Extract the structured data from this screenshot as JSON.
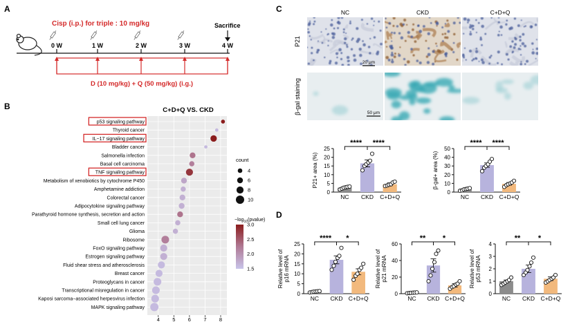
{
  "panel_labels": {
    "a": "A",
    "b": "B",
    "c": "C",
    "d": "D"
  },
  "timeline": {
    "cisp_label": "Cisp (i.p.) for triple : 10 mg/kg",
    "weeks": [
      "0 W",
      "1 W",
      "2 W",
      "3 W",
      "4 W"
    ],
    "sacrifice_label": "Sacrifice",
    "treatment_label": "D (10 mg/kg) + Q (50 mg/kg) (i.g.)"
  },
  "colors": {
    "red": "#d42a2a",
    "nc": "#8c8c8c",
    "ckd": "#b7b3dd",
    "cdq": "#f2b97d",
    "low": "#c8c4ea",
    "high": "#8b1d1d"
  },
  "chart_data": [
    {
      "type": "scatter",
      "title": "C+D+Q VS. CKD",
      "xlabel": "",
      "xlim": [
        3.3,
        8.4
      ],
      "xticks": [
        "4",
        "5",
        "6",
        "7",
        "8"
      ],
      "categories": [
        "p53 signaling pathway",
        "Thyroid cancer",
        "IL−17 signaling pathway",
        "Bladder cancer",
        "Salmonella infection",
        "Basal cell carcinoma",
        "TNF signaling pathway",
        "Metabolism of xenobiotics by cytochrome P450",
        "Amphetamine addiction",
        "Colorectal cancer",
        "Adipocytokine signaling pathway",
        "Parathyroid hormone synthesis, secretion and action",
        "Small cell lung cancer",
        "Glioma",
        "Ribosome",
        "FoxO signaling pathway",
        "Estrogen signaling pathway",
        "Fluid shear stress and atherosclerosis",
        "Breast cancer",
        "Proteoglycans in cancer",
        "Transcriptional misregulation in cancer",
        "Kaposi sarcoma−associated herpesvirus infection",
        "MAPK signaling pathway"
      ],
      "highlighted": [
        0,
        2,
        6
      ],
      "x": [
        8.15,
        7.75,
        7.55,
        7.05,
        6.2,
        6.15,
        6.0,
        5.65,
        5.6,
        5.55,
        5.5,
        5.4,
        5.25,
        5.1,
        4.45,
        4.35,
        4.35,
        4.2,
        4.05,
        3.95,
        3.85,
        3.8,
        3.75
      ],
      "count": [
        3,
        2,
        7,
        2,
        6,
        5,
        8,
        6,
        5,
        6,
        6,
        6,
        5,
        5,
        9,
        8,
        8,
        8,
        8,
        9,
        9,
        9,
        10
      ],
      "log10_pvalue": [
        3.0,
        1.6,
        3.0,
        1.6,
        2.3,
        2.2,
        2.8,
        1.8,
        1.7,
        1.7,
        1.7,
        2.3,
        1.7,
        1.7,
        2.2,
        1.7,
        1.7,
        1.6,
        1.6,
        1.6,
        1.6,
        1.6,
        1.6
      ],
      "legend": {
        "size_title": "count",
        "size_values": [
          "4",
          "6",
          "8",
          "10"
        ],
        "color_title": "−log",
        "color_title_sub": "10",
        "color_title_tail": "(pvalue)",
        "color_range": [
          1.5,
          3.0
        ],
        "color_ticks": [
          "3.0",
          "2.5",
          "2.0",
          "1.5"
        ]
      }
    },
    {
      "type": "bar",
      "ylabel": "P21+ area (%)",
      "ylim": [
        0,
        25
      ],
      "yticks": [
        "0",
        "5",
        "10",
        "15",
        "20",
        "25"
      ],
      "categories": [
        "NC",
        "CKD",
        "C+D+Q"
      ],
      "values": [
        2.5,
        16.5,
        4.5
      ],
      "errors": [
        0.7,
        2.0,
        0.8
      ],
      "points": [
        [
          1.5,
          2.0,
          2.5,
          2.8,
          3.0,
          3.2
        ],
        [
          12.5,
          15.0,
          16.0,
          17.0,
          18.0,
          22.0
        ],
        [
          3.5,
          3.8,
          4.2,
          4.5,
          5.5,
          6.0
        ]
      ],
      "significance": [
        "****",
        "****"
      ]
    },
    {
      "type": "bar",
      "ylabel": "β-gal+ area (%)",
      "ylim": [
        0,
        50
      ],
      "yticks": [
        "0",
        "10",
        "20",
        "30",
        "40",
        "50"
      ],
      "categories": [
        "NC",
        "CKD",
        "C+D+Q"
      ],
      "values": [
        3.0,
        31.0,
        9.5
      ],
      "errors": [
        0.8,
        2.5,
        1.5
      ],
      "points": [
        [
          1.5,
          2.0,
          3.0,
          3.5,
          4.0,
          4.5
        ],
        [
          24.0,
          28.0,
          30.0,
          32.0,
          35.0,
          38.0
        ],
        [
          6.0,
          8.0,
          9.0,
          10.0,
          11.0,
          13.0
        ]
      ],
      "significance": [
        "****",
        "****"
      ]
    },
    {
      "type": "bar",
      "ylabel": "Relative level of",
      "ylabel_gene": "p16 mRNA",
      "ylim": [
        0,
        25
      ],
      "yticks": [
        "0",
        "5",
        "10",
        "15",
        "20",
        "25"
      ],
      "categories": [
        "NC",
        "CKD",
        "C+D+Q"
      ],
      "values": [
        1.0,
        17.0,
        11.0
      ],
      "errors": [
        0.3,
        2.0,
        1.5
      ],
      "points": [
        [
          0.6,
          0.8,
          1.0,
          1.1,
          1.2,
          1.3
        ],
        [
          12.0,
          14.0,
          16.0,
          18.0,
          19.0,
          23.0
        ],
        [
          7.0,
          9.0,
          10.0,
          12.0,
          13.0,
          15.0
        ]
      ],
      "significance": [
        "****",
        "*"
      ]
    },
    {
      "type": "bar",
      "ylabel": "Relative level of",
      "ylabel_gene": "p21 mRNA",
      "ylim": [
        0,
        60
      ],
      "yticks": [
        "0",
        "20",
        "40",
        "60"
      ],
      "categories": [
        "NC",
        "CKD",
        "C+D+Q"
      ],
      "values": [
        1.0,
        34.0,
        10.0
      ],
      "errors": [
        0.5,
        8.0,
        2.0
      ],
      "points": [
        [
          0.5,
          0.8,
          1.0,
          1.2,
          1.3,
          1.5
        ],
        [
          15.0,
          22.0,
          30.0,
          38.0,
          48.0,
          52.0
        ],
        [
          6.0,
          8.0,
          9.0,
          11.0,
          12.0,
          15.0
        ]
      ],
      "significance": [
        "**",
        "*"
      ]
    },
    {
      "type": "bar",
      "ylabel": "Relative level of",
      "ylabel_gene": "p53 mRNA",
      "ylim": [
        0,
        4
      ],
      "yticks": [
        "0",
        "1",
        "2",
        "3",
        "4"
      ],
      "categories": [
        "NC",
        "CKD",
        "C+D+Q"
      ],
      "values": [
        1.0,
        2.0,
        1.2
      ],
      "errors": [
        0.1,
        0.3,
        0.15
      ],
      "points": [
        [
          0.7,
          0.8,
          0.9,
          1.0,
          1.1,
          1.3
        ],
        [
          1.5,
          1.7,
          1.9,
          2.2,
          2.5,
          2.9
        ],
        [
          0.9,
          1.0,
          1.1,
          1.2,
          1.3,
          1.5
        ]
      ],
      "significance": [
        "**",
        "*"
      ]
    }
  ],
  "micrographs": {
    "columns": [
      "NC",
      "CKD",
      "C+D+Q"
    ],
    "rows": [
      "P21",
      "β-gal staining"
    ],
    "scale_bars": [
      "20 μm",
      "50 μm"
    ]
  }
}
